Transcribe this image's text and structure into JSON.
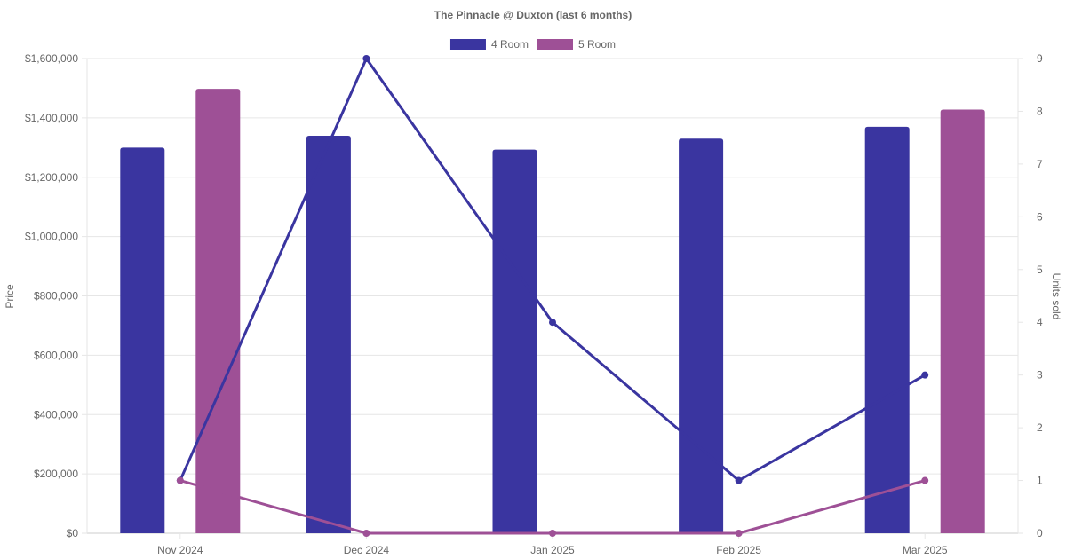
{
  "chart_data": {
    "type": "bar",
    "title": "The Pinnacle @ Duxton (last 6 months)",
    "categories": [
      "Nov 2024",
      "Dec 2024",
      "Jan 2025",
      "Feb 2025",
      "Mar 2025"
    ],
    "y_left": {
      "label": "Price",
      "range": [
        0,
        1600000
      ],
      "ticks": [
        0,
        200000,
        400000,
        600000,
        800000,
        1000000,
        1200000,
        1400000,
        1600000
      ],
      "tick_labels": [
        "$0",
        "$200,000",
        "$400,000",
        "$600,000",
        "$800,000",
        "$1,000,000",
        "$1,200,000",
        "$1,400,000",
        "$1,600,000"
      ]
    },
    "y_right": {
      "label": "Units sold",
      "range": [
        0,
        9
      ],
      "ticks": [
        0,
        1,
        2,
        3,
        4,
        5,
        6,
        7,
        8,
        9
      ],
      "tick_labels": [
        "0",
        "1",
        "2",
        "3",
        "4",
        "5",
        "6",
        "7",
        "8",
        "9"
      ]
    },
    "legend_position": "top",
    "grid": true,
    "series": [
      {
        "name": "4 Room",
        "kind": "bar",
        "axis": "left",
        "color": "#3a35a0",
        "values": [
          1300000,
          1340000,
          1293000,
          1330000,
          1370000
        ]
      },
      {
        "name": "5 Room",
        "kind": "bar",
        "axis": "left",
        "color": "#9e5096",
        "values": [
          1498000,
          null,
          null,
          null,
          1428000
        ]
      }
    ],
    "volume_series": [
      {
        "kind": "line",
        "axis": "right",
        "color": "#3a35a0",
        "values": [
          1,
          9,
          4,
          1,
          3
        ]
      },
      {
        "kind": "line",
        "axis": "right",
        "color": "#9e5096",
        "values": [
          1,
          0,
          0,
          0,
          1
        ]
      }
    ]
  }
}
